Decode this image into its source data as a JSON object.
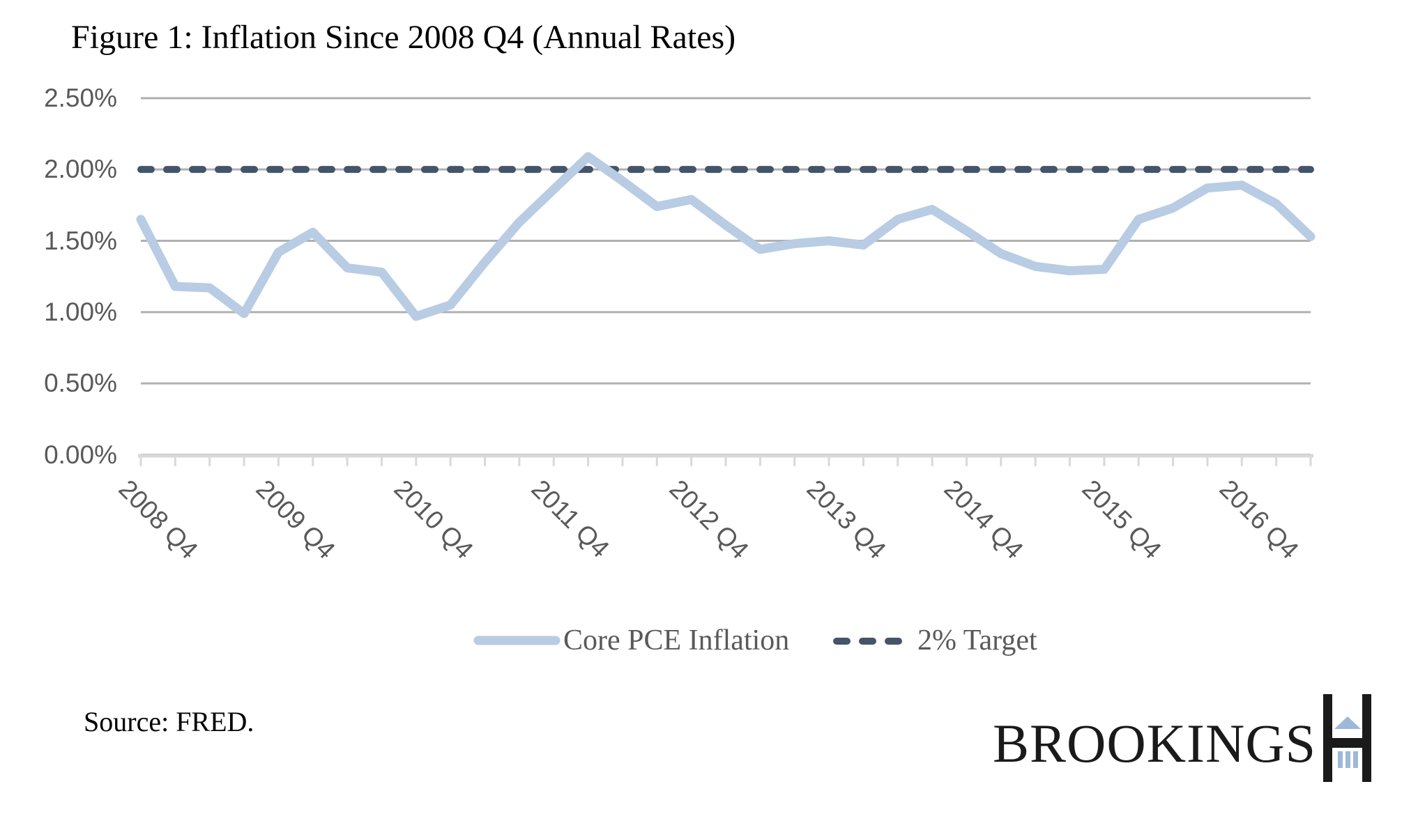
{
  "title": "Figure 1: Inflation Since 2008 Q4 (Annual Rates)",
  "source_note": "Source: FRED.",
  "logo": {
    "wordmark": "BROOKINGS"
  },
  "legend": {
    "pce_label": "Core PCE Inflation",
    "target_label": "2% Target"
  },
  "colors": {
    "pce_line": "#b8cce4",
    "target_line": "#44546a",
    "gridline": "#b0b0b0",
    "axis_line": "#d9d9d9",
    "axis_text": "#595959",
    "legend_text": "#595959",
    "title_text": "#000000",
    "logo_blue": "#9db8d8",
    "background": "#ffffff"
  },
  "chart_data": {
    "type": "line",
    "title": "Figure 1: Inflation Since 2008 Q4 (Annual Rates)",
    "x_frequency": "quarterly",
    "categories": [
      "2008 Q4",
      "2009 Q1",
      "2009 Q2",
      "2009 Q3",
      "2009 Q4",
      "2010 Q1",
      "2010 Q2",
      "2010 Q3",
      "2010 Q4",
      "2011 Q1",
      "2011 Q2",
      "2011 Q3",
      "2011 Q4",
      "2012 Q1",
      "2012 Q2",
      "2012 Q3",
      "2012 Q4",
      "2013 Q1",
      "2013 Q2",
      "2013 Q3",
      "2013 Q4",
      "2014 Q1",
      "2014 Q2",
      "2014 Q3",
      "2014 Q4",
      "2015 Q1",
      "2015 Q2",
      "2015 Q3",
      "2015 Q4",
      "2016 Q1",
      "2016 Q2",
      "2016 Q3",
      "2016 Q4",
      "2017 Q1",
      "2017 Q2"
    ],
    "series": [
      {
        "name": "Core PCE Inflation",
        "style": "thick-light-blue",
        "values": [
          1.65,
          1.18,
          1.17,
          0.99,
          1.42,
          1.56,
          1.31,
          1.28,
          0.97,
          1.05,
          1.35,
          1.63,
          1.86,
          2.09,
          1.92,
          1.74,
          1.79,
          1.61,
          1.44,
          1.48,
          1.5,
          1.47,
          1.65,
          1.72,
          1.57,
          1.41,
          1.32,
          1.29,
          1.3,
          1.65,
          1.73,
          1.87,
          1.89,
          1.76,
          1.53
        ]
      },
      {
        "name": "2% Target",
        "style": "dashed-dark-slate",
        "constant_value": 2.0
      }
    ],
    "y_axis": {
      "ticks": [
        2.5,
        2.0,
        1.5,
        1.0,
        0.5,
        0.0
      ],
      "tick_labels": [
        "2.50%",
        "2.00%",
        "1.50%",
        "1.00%",
        "0.50%",
        "0.00%"
      ],
      "ylim": [
        0,
        2.5
      ]
    },
    "x_axis": {
      "tick_labels": [
        "2008 Q4",
        "2009 Q4",
        "2010 Q4",
        "2011 Q4",
        "2012 Q4",
        "2013 Q4",
        "2014 Q4",
        "2015 Q4",
        "2016 Q4"
      ],
      "label_every_n_points": 4
    },
    "grid": "horizontal",
    "legend_position": "bottom-center"
  }
}
